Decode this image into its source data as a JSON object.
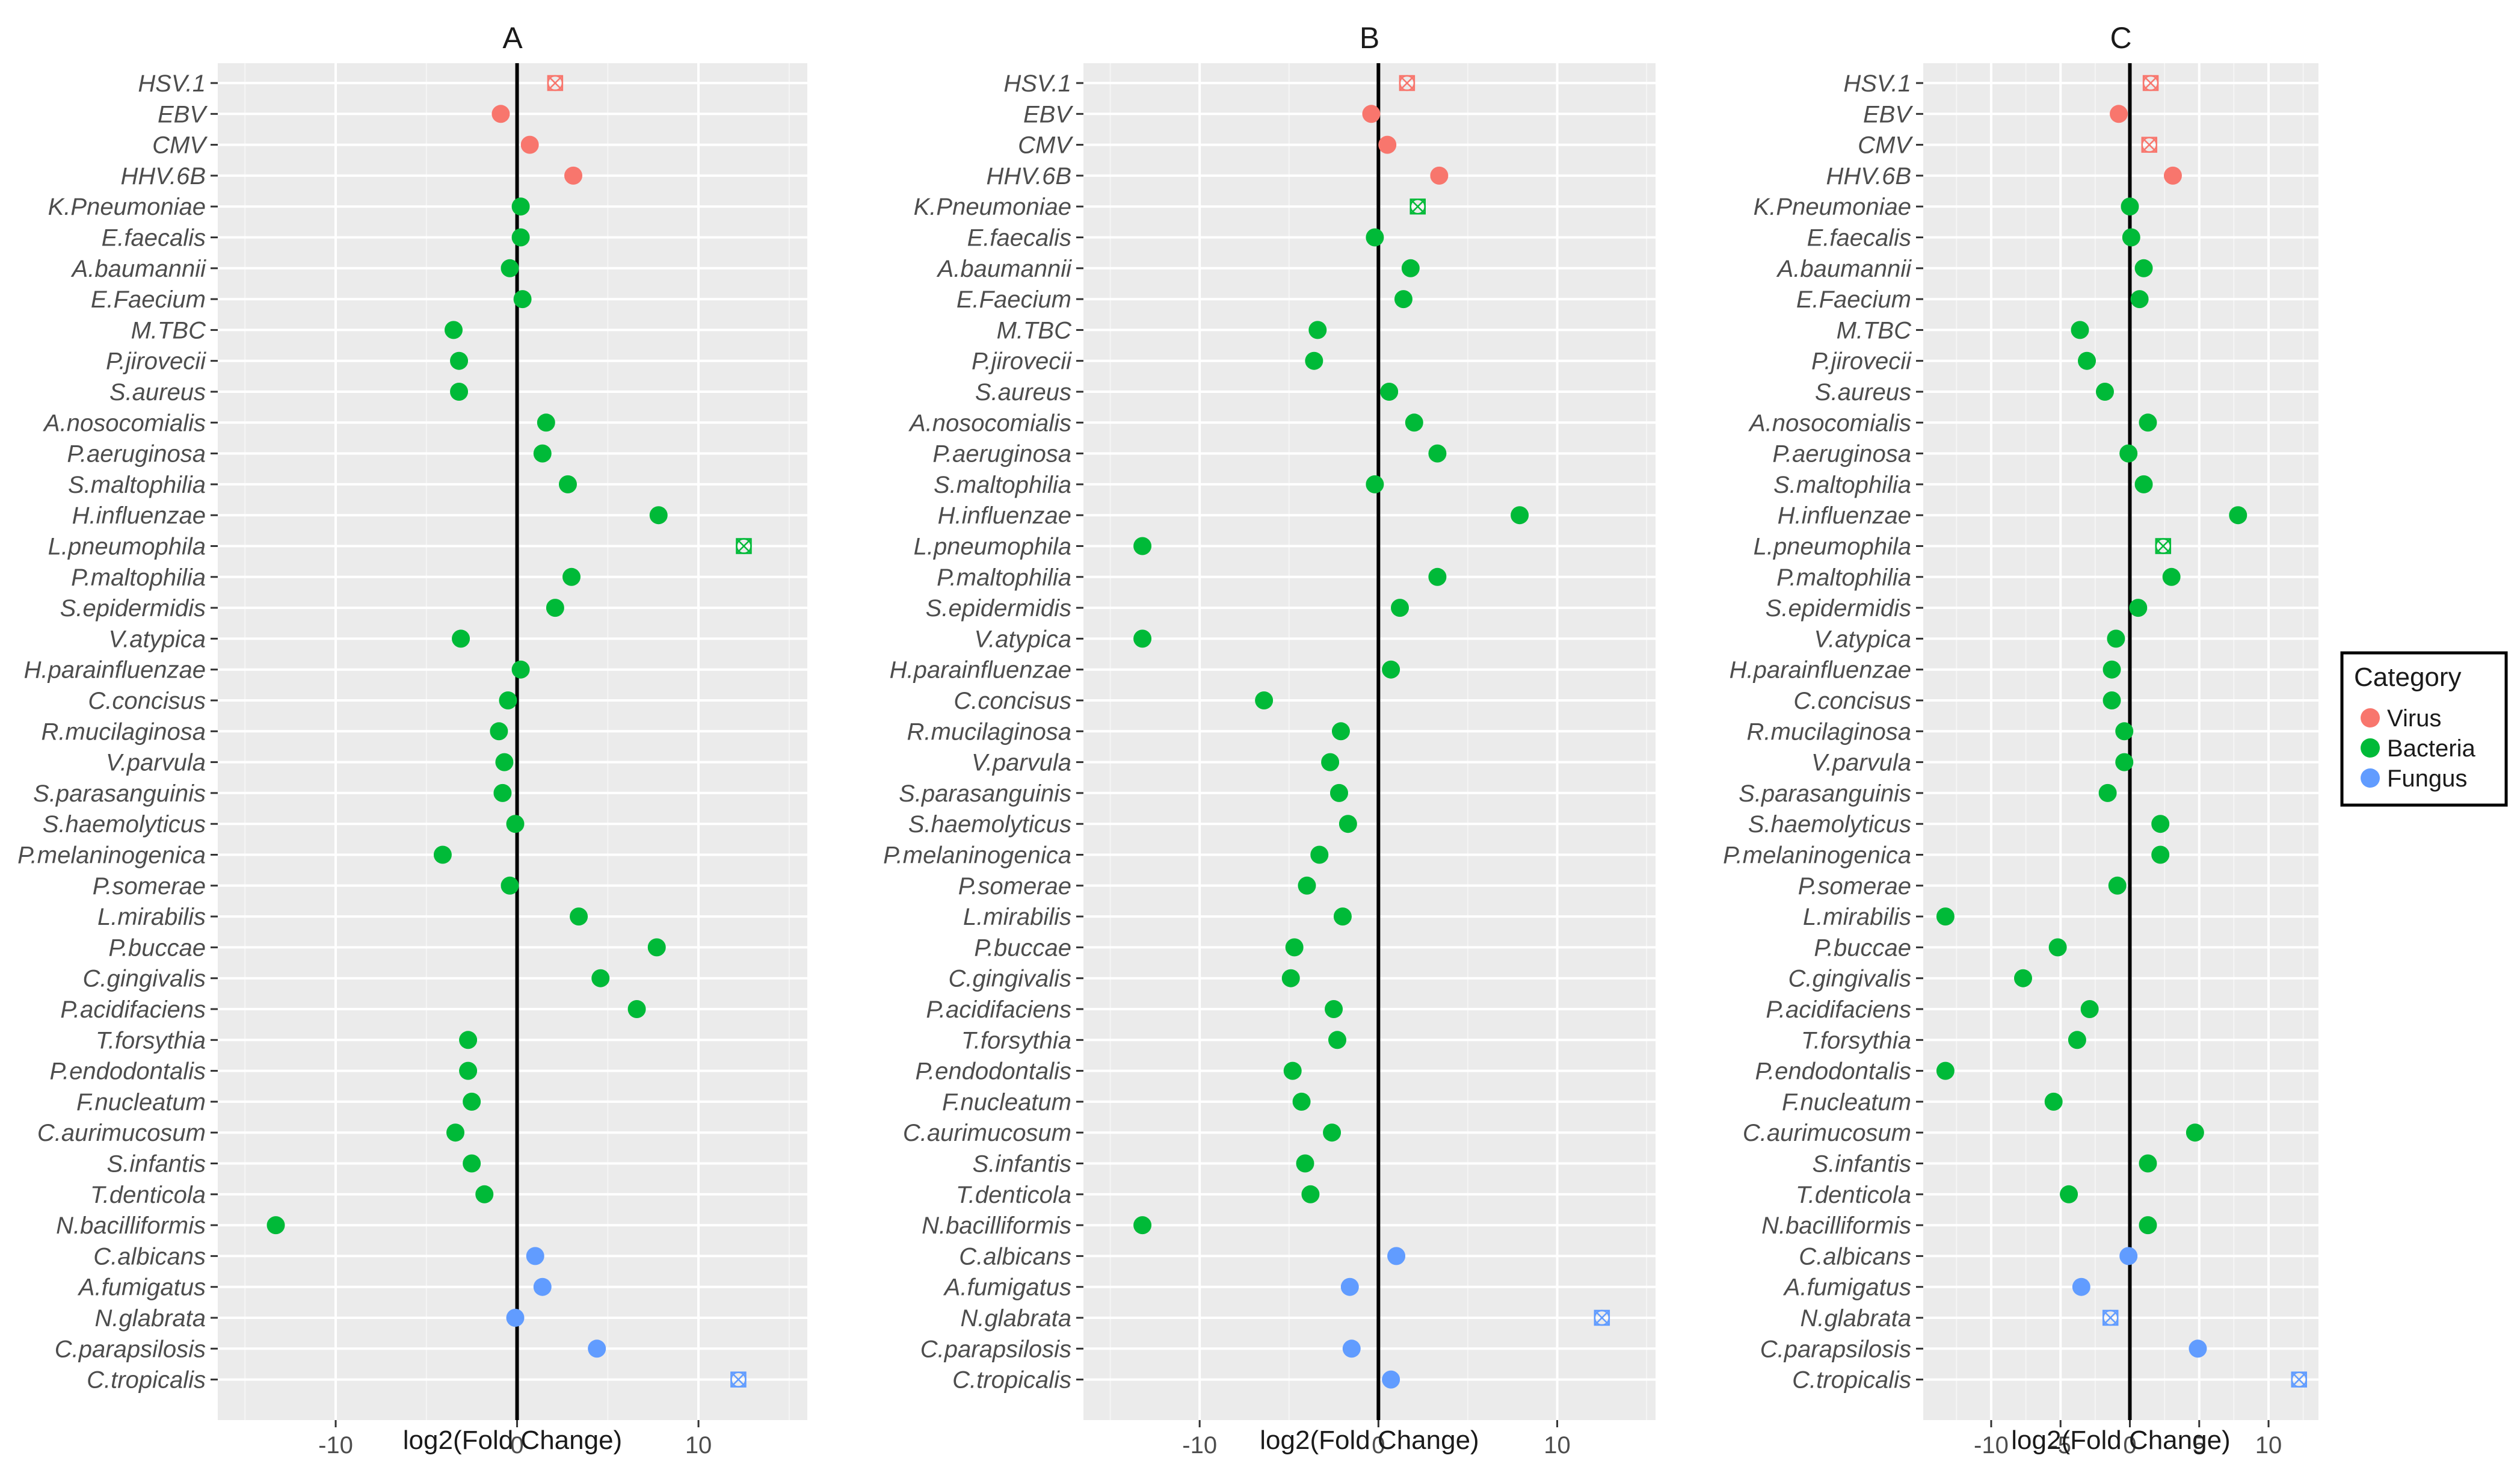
{
  "chart_data": {
    "type": "scatter",
    "species": [
      "HSV.1",
      "EBV",
      "CMV",
      "HHV.6B",
      "K.Pneumoniae",
      "E.faecalis",
      "A.baumannii",
      "E.Faecium",
      "M.TBC",
      "P.jirovecii",
      "S.aureus",
      "A.nosocomialis",
      "P.aeruginosa",
      "S.maltophilia",
      "H.influenzae",
      "L.pneumophila",
      "P.maltophilia",
      "S.epidermidis",
      "V.atypica",
      "H.parainfluenzae",
      "C.concisus",
      "R.mucilaginosa",
      "V.parvula",
      "S.parasanguinis",
      "S.haemolyticus",
      "P.melaninogenica",
      "P.somerae",
      "L.mirabilis",
      "P.buccae",
      "C.gingivalis",
      "P.acidifaciens",
      "T.forsythia",
      "P.endodontalis",
      "F.nucleatum",
      "C.aurimucosum",
      "S.infantis",
      "T.denticola",
      "N.bacilliformis",
      "C.albicans",
      "A.fumigatus",
      "N.glabrata",
      "C.parapsilosis",
      "C.tropicalis"
    ],
    "categories": [
      "Virus",
      "Virus",
      "Virus",
      "Virus",
      "Bacteria",
      "Bacteria",
      "Bacteria",
      "Bacteria",
      "Bacteria",
      "Bacteria",
      "Bacteria",
      "Bacteria",
      "Bacteria",
      "Bacteria",
      "Bacteria",
      "Bacteria",
      "Bacteria",
      "Bacteria",
      "Bacteria",
      "Bacteria",
      "Bacteria",
      "Bacteria",
      "Bacteria",
      "Bacteria",
      "Bacteria",
      "Bacteria",
      "Bacteria",
      "Bacteria",
      "Bacteria",
      "Bacteria",
      "Bacteria",
      "Bacteria",
      "Bacteria",
      "Bacteria",
      "Bacteria",
      "Bacteria",
      "Bacteria",
      "Bacteria",
      "Fungus",
      "Fungus",
      "Fungus",
      "Fungus",
      "Fungus"
    ],
    "xlabel": "log2(Fold Change)",
    "legend": {
      "title": "Category",
      "entries": [
        {
          "name": "Virus",
          "color": "#F8766D"
        },
        {
          "name": "Bacteria",
          "color": "#00BA38"
        },
        {
          "name": "Fungus",
          "color": "#619CFF"
        }
      ]
    },
    "panels": [
      {
        "title": "A",
        "xlim": [
          -16.5,
          16
        ],
        "xticks": [
          -10,
          0,
          10
        ],
        "xtick_labels": [
          "-10",
          "0",
          "10"
        ],
        "values": [
          2.1,
          -0.9,
          0.7,
          3.1,
          0.2,
          0.2,
          -0.4,
          0.3,
          -3.5,
          -3.2,
          -3.2,
          1.6,
          1.4,
          2.8,
          7.8,
          12.5,
          3.0,
          2.1,
          -3.1,
          0.2,
          -0.5,
          -1.0,
          -0.7,
          -0.8,
          -0.1,
          -4.1,
          -0.4,
          3.4,
          7.7,
          4.6,
          6.6,
          -2.7,
          -2.7,
          -2.5,
          -3.4,
          -2.5,
          -1.8,
          -13.3,
          1.0,
          1.4,
          -0.1,
          4.4,
          12.2
        ],
        "hollow": [
          true,
          false,
          false,
          false,
          false,
          false,
          false,
          false,
          false,
          false,
          false,
          false,
          false,
          false,
          false,
          true,
          false,
          false,
          false,
          false,
          false,
          false,
          false,
          false,
          false,
          false,
          false,
          false,
          false,
          false,
          false,
          false,
          false,
          false,
          false,
          false,
          false,
          false,
          false,
          false,
          false,
          false,
          true
        ]
      },
      {
        "title": "B",
        "xlim": [
          -16.5,
          15.5
        ],
        "xticks": [
          -10,
          0,
          10
        ],
        "xtick_labels": [
          "-10",
          "0",
          "10"
        ],
        "values": [
          1.6,
          -0.4,
          0.5,
          3.4,
          2.2,
          -0.2,
          1.8,
          1.4,
          -3.4,
          -3.6,
          0.6,
          2.0,
          3.3,
          -0.2,
          7.9,
          -13.2,
          3.3,
          1.2,
          -13.2,
          0.7,
          -6.4,
          -2.1,
          -2.7,
          -2.2,
          -1.7,
          -3.3,
          -4.0,
          -2.0,
          -4.7,
          -4.9,
          -2.5,
          -2.3,
          -4.8,
          -4.3,
          -2.6,
          -4.1,
          -3.8,
          -13.2,
          1.0,
          -1.6,
          12.5,
          -1.5,
          0.7
        ],
        "hollow": [
          true,
          false,
          false,
          false,
          true,
          false,
          false,
          false,
          false,
          false,
          false,
          false,
          false,
          false,
          false,
          false,
          false,
          false,
          false,
          false,
          false,
          false,
          false,
          false,
          false,
          false,
          false,
          false,
          false,
          false,
          false,
          false,
          false,
          false,
          false,
          false,
          false,
          false,
          false,
          false,
          true,
          false,
          false
        ]
      },
      {
        "title": "C",
        "xlim": [
          -14.9,
          13.6
        ],
        "xticks": [
          -10,
          -5,
          0,
          5,
          10
        ],
        "xtick_labels": [
          "-10",
          "-5",
          "0",
          "5",
          "10"
        ],
        "values": [
          1.5,
          -0.8,
          1.4,
          3.1,
          0.0,
          0.1,
          1.0,
          0.7,
          -3.6,
          -3.1,
          -1.8,
          1.3,
          -0.1,
          1.0,
          7.8,
          2.4,
          3.0,
          0.6,
          -1.0,
          -1.3,
          -1.3,
          -0.4,
          -0.4,
          -1.6,
          2.2,
          2.2,
          -0.9,
          -13.3,
          -5.2,
          -7.7,
          -2.9,
          -3.8,
          -13.3,
          -5.5,
          4.7,
          1.3,
          -4.4,
          1.3,
          -0.1,
          -3.5,
          -1.4,
          4.9,
          12.2
        ],
        "hollow": [
          true,
          false,
          true,
          false,
          false,
          false,
          false,
          false,
          false,
          false,
          false,
          false,
          false,
          false,
          false,
          true,
          false,
          false,
          false,
          false,
          false,
          false,
          false,
          false,
          false,
          false,
          false,
          false,
          false,
          false,
          false,
          false,
          false,
          false,
          false,
          false,
          false,
          false,
          false,
          false,
          true,
          false,
          true
        ]
      }
    ]
  }
}
